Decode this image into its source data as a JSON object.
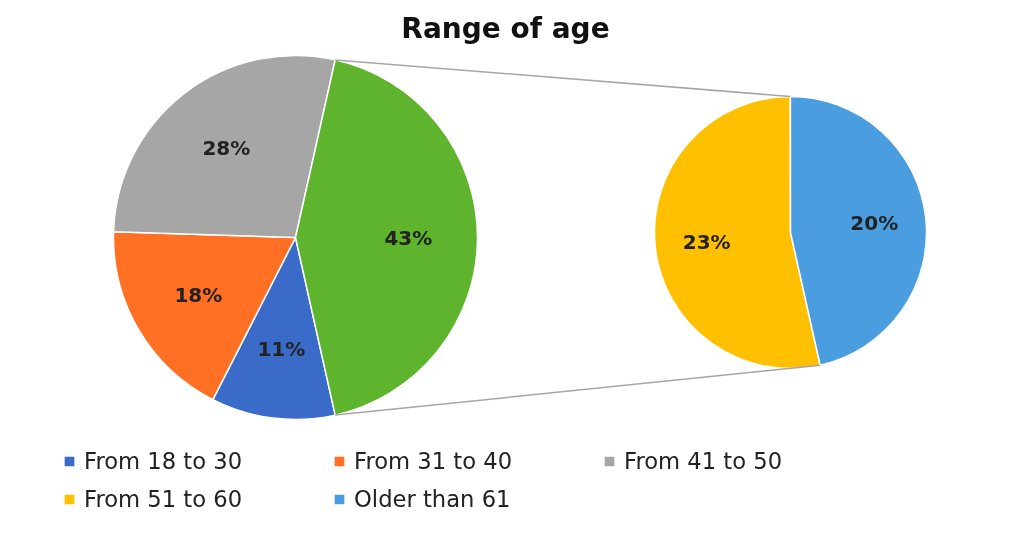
{
  "chart_data": [
    {
      "type": "pie",
      "title": "Range of age",
      "categories": [
        "From 18 to 30",
        "From 31 to 40",
        "From 41 to 50",
        null
      ],
      "values": [
        11,
        18,
        28,
        43
      ],
      "colors": [
        "#3a6bc9",
        "#ff7024",
        "#a6a6a6",
        "#5fb42e"
      ],
      "value_labels": [
        "11%",
        "18%",
        "28%",
        "43%"
      ],
      "legend": "bottom"
    },
    {
      "type": "pie",
      "categories": [
        "From 51 to 60",
        "Older than 61"
      ],
      "values": [
        23,
        20
      ],
      "colors": [
        "#ffc000",
        "#4a9ee0"
      ],
      "value_labels": [
        "23%",
        "20%"
      ],
      "legend": "bottom"
    }
  ]
}
